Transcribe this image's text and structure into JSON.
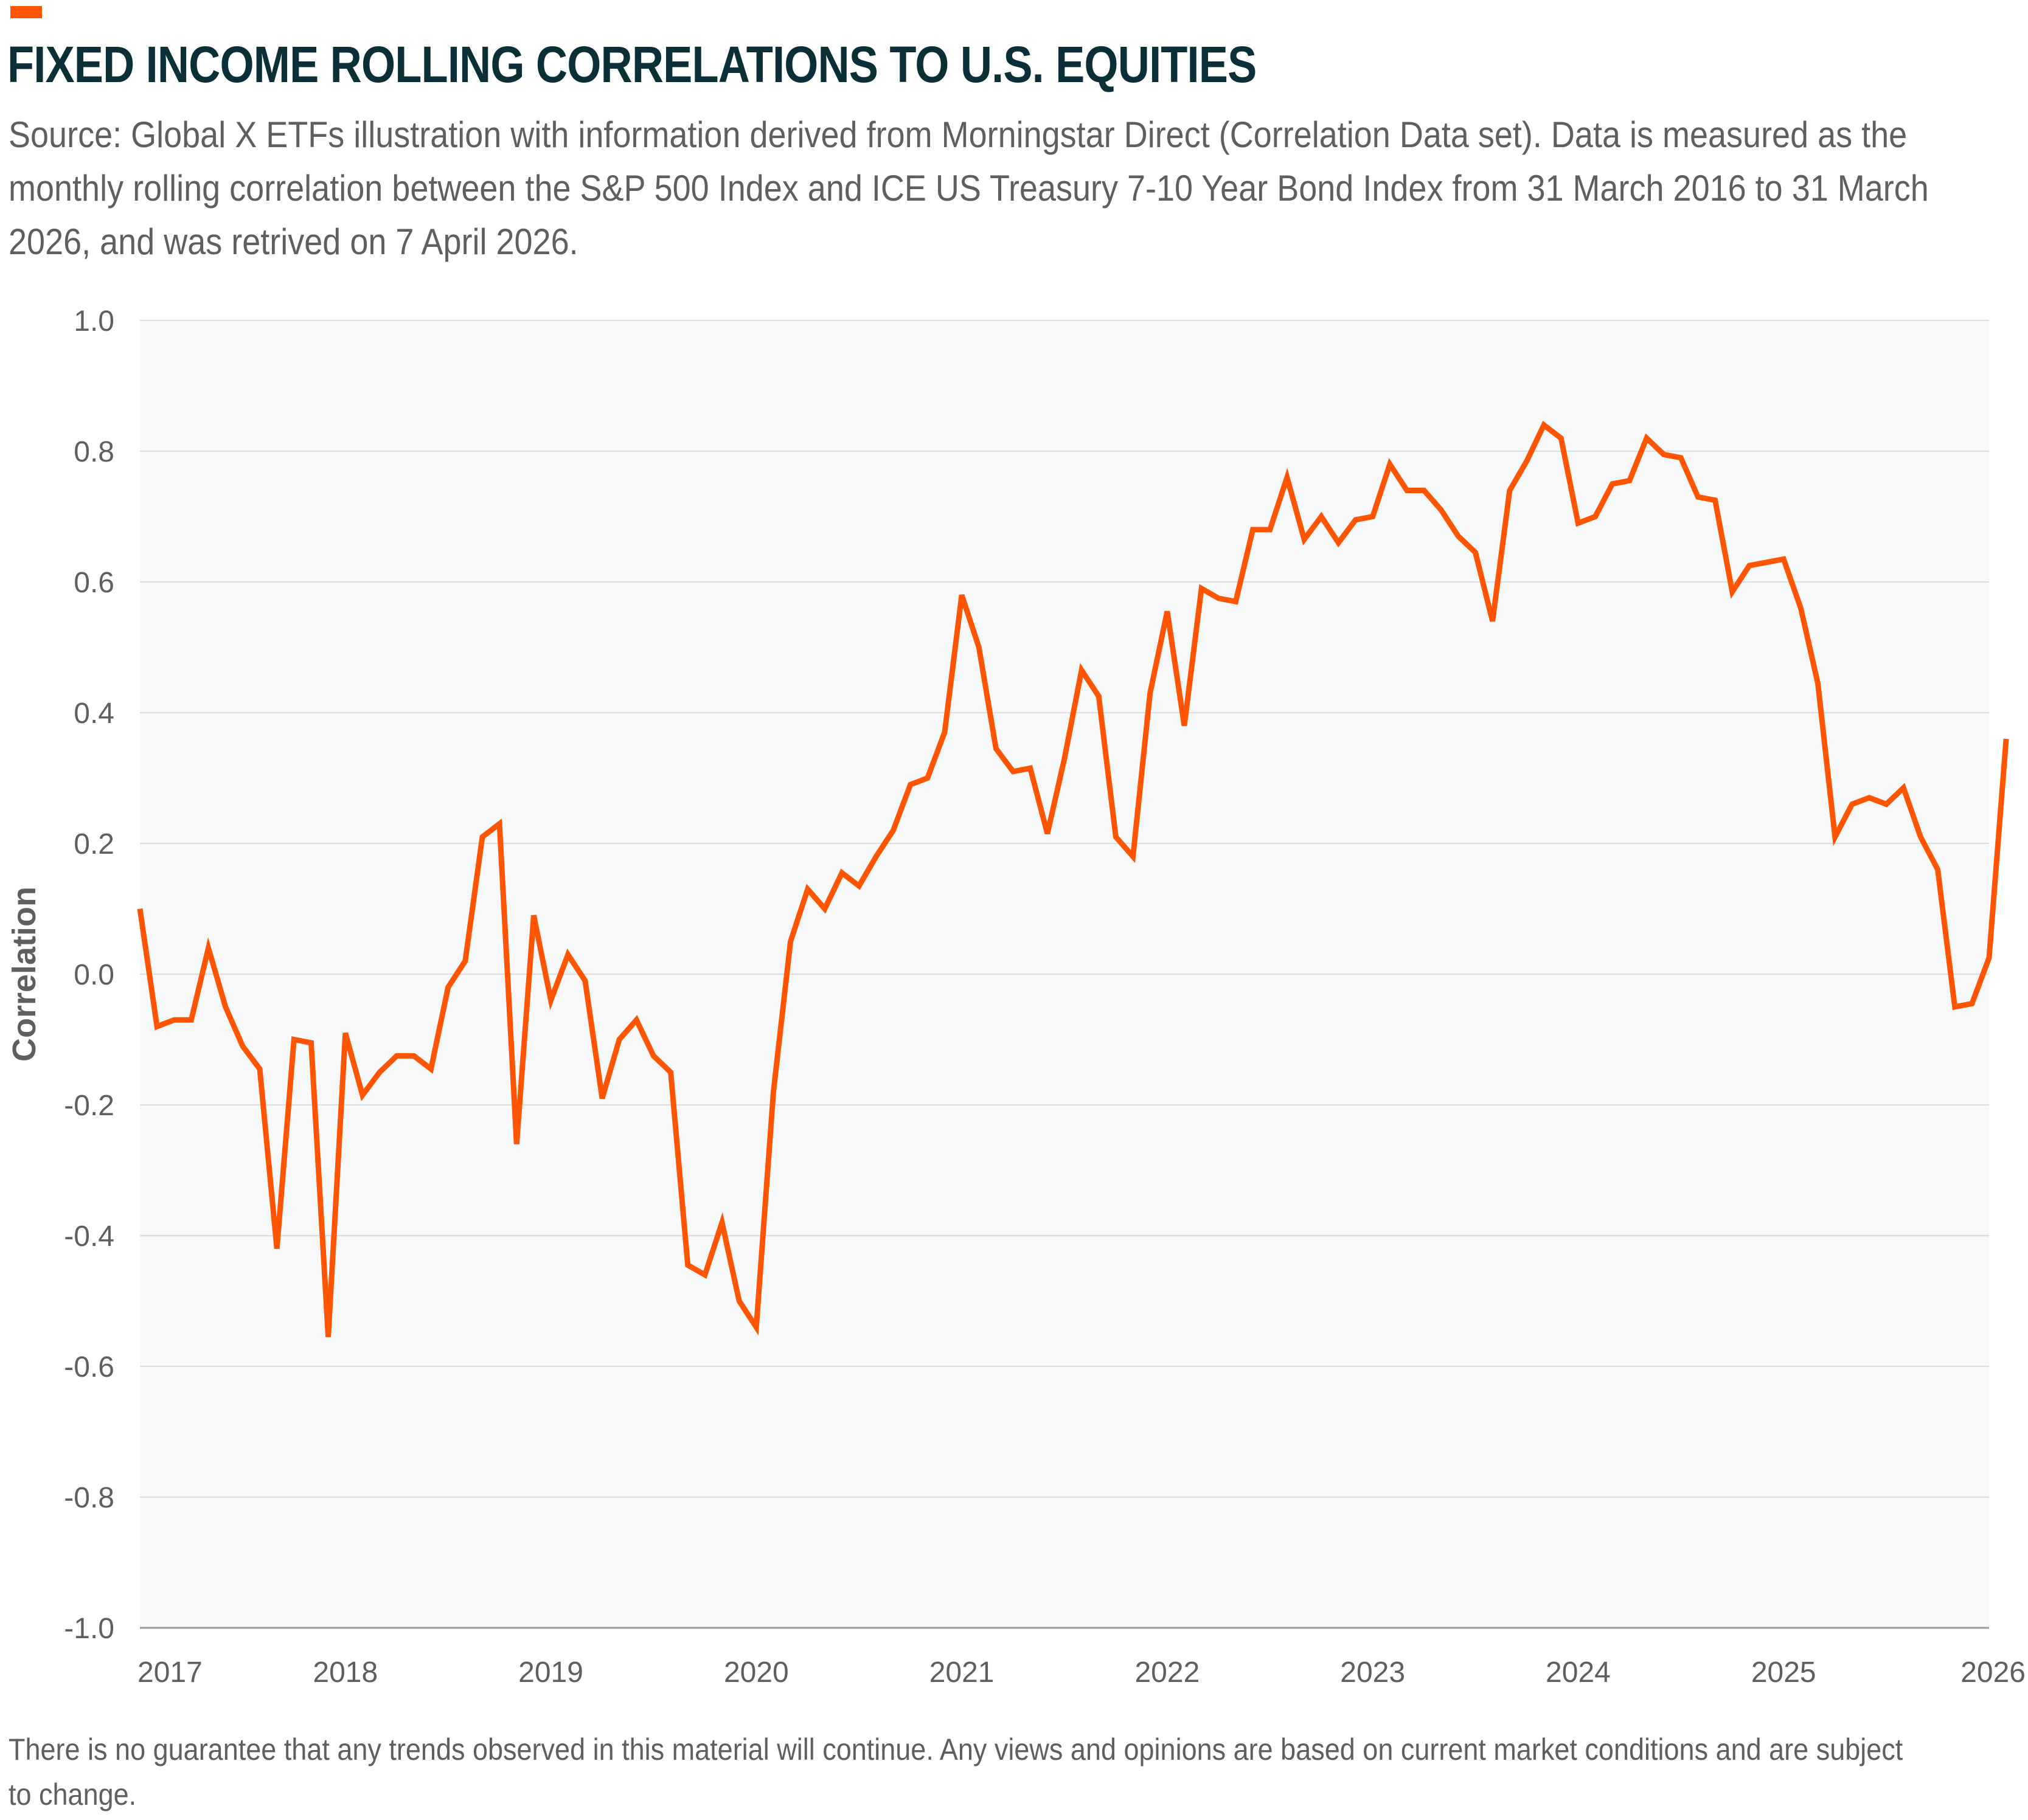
{
  "header": {
    "title": "FIXED INCOME ROLLING CORRELATIONS TO U.S. EQUITIES",
    "subtitle": "Source: Global X ETFs illustration with information derived from Morningstar Direct (Correlation Data set). Data is measured as the monthly rolling correlation between the S&P 500 Index and ICE US Treasury 7-10 Year Bond Index from 31 March 2016 to 31 March 2026, and was retrived on 7 April 2026."
  },
  "footnote": "There is no guarantee that any trends observed in this material will continue. Any views and opinions are based on current market conditions and are subject to change.",
  "colors": {
    "accent": "#ff5400",
    "line": "#ff5400",
    "title": "#0b2f36",
    "plot_bg": "#f7f8fa",
    "grid": "#dcdde0"
  },
  "chart_data": {
    "type": "line",
    "title": "FIXED INCOME ROLLING CORRELATIONS TO U.S. EQUITIES",
    "xlabel": "",
    "ylabel": "Correlation",
    "ylim": [
      -1.0,
      1.0
    ],
    "yticks": [
      "1.0",
      "0.8",
      "0.6",
      "0.4",
      "0.2",
      "0.0",
      "-0.2",
      "-0.4",
      "-0.6",
      "-0.8",
      "-1.0"
    ],
    "xticks": [
      "2017",
      "2018",
      "2019",
      "2020",
      "2021",
      "2022",
      "2023",
      "2024",
      "2025",
      "2026"
    ],
    "xlim": [
      "2017-01",
      "2026-01"
    ],
    "grid": true,
    "legend": "none",
    "x_start": "2017-01",
    "x_step": "monthly",
    "values": [
      0.1,
      -0.08,
      -0.07,
      -0.07,
      0.04,
      -0.05,
      -0.11,
      -0.145,
      -0.42,
      -0.1,
      -0.105,
      -0.555,
      -0.09,
      -0.185,
      -0.15,
      -0.125,
      -0.125,
      -0.145,
      -0.02,
      0.02,
      0.21,
      0.23,
      -0.26,
      0.09,
      -0.04,
      0.03,
      -0.01,
      -0.19,
      -0.1,
      -0.07,
      -0.125,
      -0.15,
      -0.445,
      -0.46,
      -0.38,
      -0.5,
      -0.54,
      -0.18,
      0.05,
      0.13,
      0.1,
      0.155,
      0.135,
      0.18,
      0.22,
      0.29,
      0.3,
      0.37,
      0.58,
      0.5,
      0.345,
      0.31,
      0.315,
      0.215,
      0.33,
      0.465,
      0.425,
      0.21,
      0.18,
      0.43,
      0.555,
      0.38,
      0.59,
      0.575,
      0.57,
      0.68,
      0.68,
      0.76,
      0.665,
      0.7,
      0.66,
      0.695,
      0.7,
      0.78,
      0.74,
      0.74,
      0.71,
      0.67,
      0.645,
      0.54,
      0.74,
      0.785,
      0.84,
      0.82,
      0.69,
      0.7,
      0.75,
      0.755,
      0.82,
      0.795,
      0.79,
      0.73,
      0.725,
      0.585,
      0.625,
      0.63,
      0.635,
      0.56,
      0.445,
      0.21,
      0.26,
      0.27,
      0.26,
      0.285,
      0.21,
      0.16,
      -0.05,
      -0.045,
      0.025,
      0.36
    ]
  }
}
